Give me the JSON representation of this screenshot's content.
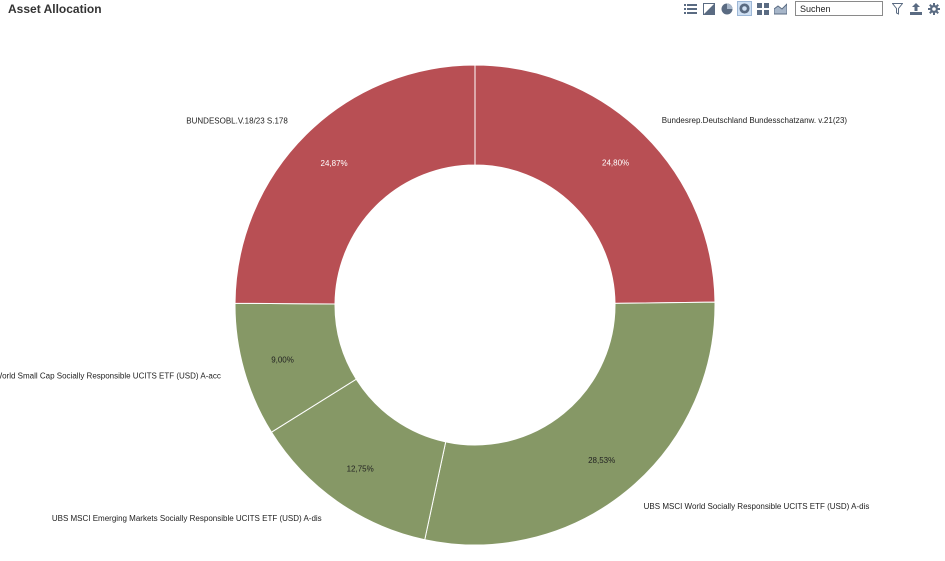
{
  "title": "Asset Allocation",
  "toolbar": {
    "icons": [
      "list-icon",
      "table-icon",
      "pie-chart-icon",
      "donut-chart-icon",
      "grid-icon",
      "area-chart-icon"
    ],
    "active_icon": "donut-chart-icon",
    "search_placeholder": "Suchen",
    "action_icons": [
      "filter-icon",
      "export-icon",
      "settings-icon"
    ]
  },
  "colors": {
    "red": "#b84f54",
    "green": "#869866",
    "toolbar_icon": "#5a6b82"
  },
  "chart_data": {
    "type": "pie",
    "donut": true,
    "slices": [
      {
        "label": "Bundesrep.Deutschland Bundesschatzanw. v.21(23)",
        "value": 24.8,
        "pct_label": "24,80%",
        "color": "#b84f54"
      },
      {
        "label": "UBS MSCI World Socially Responsible UCITS ETF (USD) A-dis",
        "value": 28.53,
        "pct_label": "28,53%",
        "color": "#869866"
      },
      {
        "label": "UBS MSCI Emerging Markets Socially Responsible UCITS ETF (USD) A-dis",
        "value": 12.75,
        "pct_label": "12,75%",
        "color": "#869866"
      },
      {
        "label": "UBS MSCI World Small Cap Socially Responsible UCITS ETF (USD) A-acc",
        "value": 9.0,
        "pct_label": "9,00%",
        "color": "#869866"
      },
      {
        "label": "BUNDESOBL.V.18/23 S.178",
        "value": 24.87,
        "pct_label": "24,87%",
        "color": "#b84f54"
      }
    ]
  }
}
